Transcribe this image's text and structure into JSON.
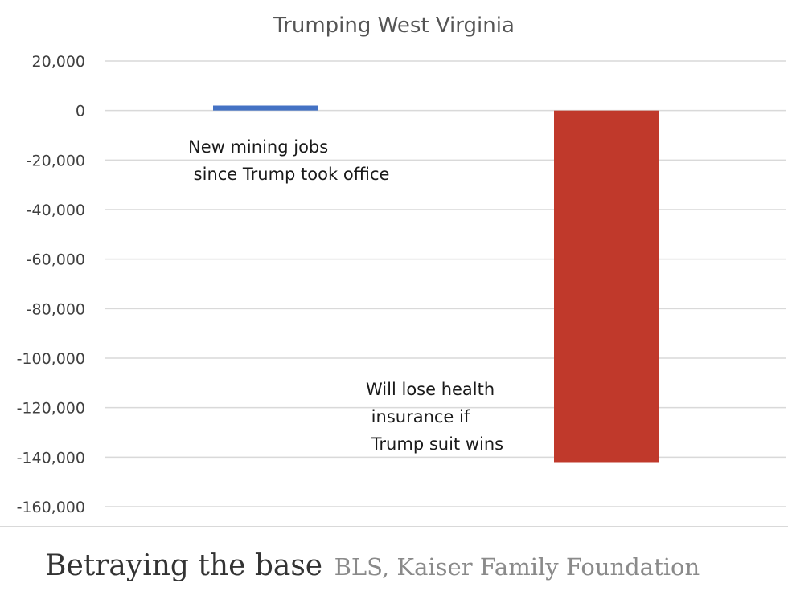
{
  "chart_data": {
    "type": "bar",
    "title": "Trumping West Virginia",
    "xlabel": "",
    "ylabel": "",
    "ylim": [
      -160000,
      20000
    ],
    "yticks": [
      20000,
      0,
      -20000,
      -40000,
      -60000,
      -80000,
      -100000,
      -120000,
      -140000,
      -160000
    ],
    "ytick_labels": [
      "20,000",
      "0",
      "-20,000",
      "-40,000",
      "-60,000",
      "-80,000",
      "-100,000",
      "-120,000",
      "-140,000",
      "-160,000"
    ],
    "grid": true,
    "categories": [
      "New mining jobs since Trump took office",
      "Will lose health insurance if Trump suit wins"
    ],
    "values": [
      2000,
      -142000
    ],
    "colors": [
      "#4472c4",
      "#c0392b"
    ],
    "annotations": [
      {
        "lines": [
          "New mining jobs",
          " since Trump took office"
        ]
      },
      {
        "lines": [
          "Will lose health",
          " insurance if",
          " Trump suit wins"
        ]
      }
    ]
  },
  "caption": {
    "title": "Betraying the base",
    "credit": "BLS, Kaiser Family Foundation"
  }
}
